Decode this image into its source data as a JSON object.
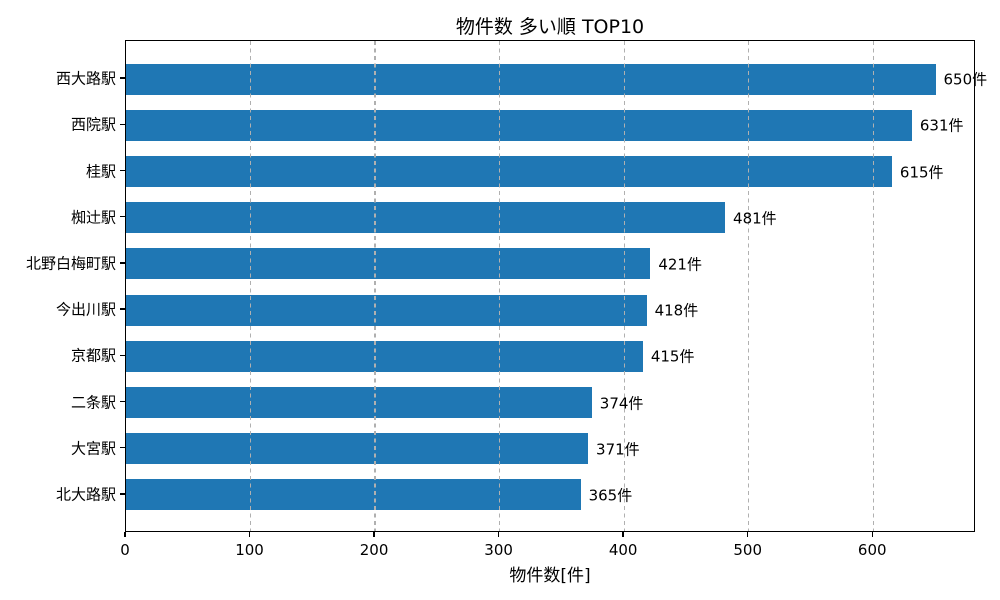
{
  "chart_data": {
    "type": "bar",
    "orientation": "horizontal",
    "title": "物件数 多い順 TOP10",
    "xlabel": "物件数[件]",
    "ylabel": "",
    "categories": [
      "西大路駅",
      "西院駅",
      "桂駅",
      "椥辻駅",
      "北野白梅町駅",
      "今出川駅",
      "京都駅",
      "二条駅",
      "大宮駅",
      "北大路駅"
    ],
    "values": [
      650,
      631,
      615,
      481,
      421,
      418,
      415,
      374,
      371,
      365
    ],
    "value_labels": [
      "650件",
      "631件",
      "615件",
      "481件",
      "421件",
      "418件",
      "415件",
      "374件",
      "371件",
      "365件"
    ],
    "x_ticks": [
      0,
      100,
      200,
      300,
      400,
      500,
      600
    ],
    "xlim": [
      0,
      682.5
    ],
    "bar_color": "#1f77b4",
    "grid": {
      "axis": "x",
      "style": "dashed",
      "color": "#b0b0b0",
      "above_bars": true
    },
    "legend": null,
    "background_color": "#ffffff",
    "text_color": "#000000",
    "spine_color": "#000000"
  }
}
